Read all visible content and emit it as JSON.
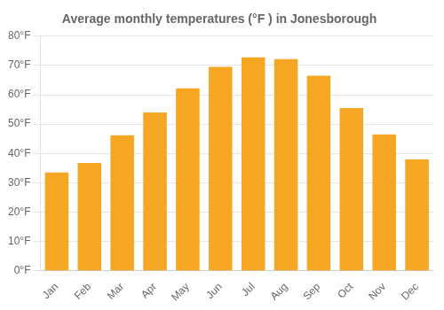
{
  "chart_data": {
    "type": "bar",
    "title": "Average monthly temperatures (°F ) in Jonesborough",
    "categories": [
      "Jan",
      "Feb",
      "Mar",
      "Apr",
      "May",
      "Jun",
      "Jul",
      "Aug",
      "Sep",
      "Oct",
      "Nov",
      "Dec"
    ],
    "values": [
      33.5,
      36.8,
      46.2,
      54.0,
      62.2,
      69.5,
      72.8,
      72.2,
      66.5,
      55.5,
      46.5,
      38.0
    ],
    "color": "#F5A623",
    "ylim": [
      0,
      80
    ],
    "yticks": [
      {
        "value": 0,
        "label": "0°F"
      },
      {
        "value": 10,
        "label": "10°F"
      },
      {
        "value": 20,
        "label": "20°F"
      },
      {
        "value": 30,
        "label": "30°F"
      },
      {
        "value": 40,
        "label": "40°F"
      },
      {
        "value": 50,
        "label": "50°F"
      },
      {
        "value": 60,
        "label": "60°F"
      },
      {
        "value": 70,
        "label": "70°F"
      },
      {
        "value": 80,
        "label": "80°F"
      }
    ],
    "grid": true
  }
}
